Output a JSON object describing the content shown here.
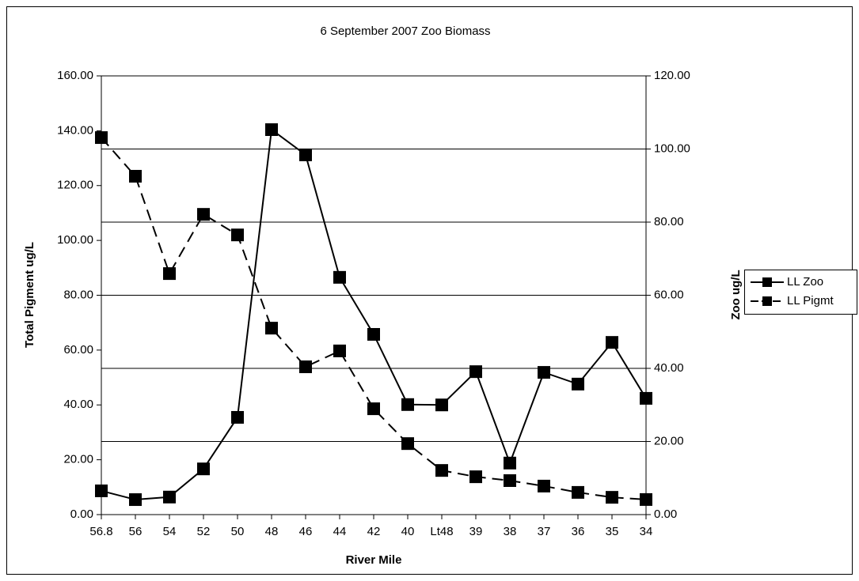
{
  "chart_data": {
    "type": "line",
    "title": "6 September 2007 Zoo Biomass",
    "x_label": "River Mile",
    "y_label": "Total Pigment ug/L",
    "y2_label": "Zoo ug/L",
    "categories": [
      "56.8",
      "56",
      "54",
      "52",
      "50",
      "48",
      "46",
      "44",
      "42",
      "40",
      "Lt48",
      "39",
      "38",
      "37",
      "36",
      "35",
      "34"
    ],
    "series": [
      {
        "name": "LL Zoo",
        "color": "#000000",
        "line_style": "solid",
        "axis": "y2",
        "values": [
          6.5,
          4.1,
          4.8,
          12.5,
          26.6,
          105.3,
          98.4,
          64.9,
          49.3,
          30.1,
          30.0,
          39.1,
          14.1,
          38.9,
          35.7,
          47.1,
          31.8
        ]
      },
      {
        "name": "LL Pigmt",
        "color": "#000000",
        "line_style": "dashed",
        "axis": "y",
        "values": [
          137.5,
          123.4,
          87.9,
          109.5,
          102.0,
          68.0,
          53.9,
          59.7,
          38.6,
          25.9,
          16.1,
          13.8,
          12.4,
          10.4,
          8.1,
          6.3,
          5.5
        ]
      }
    ],
    "ylim": [
      0,
      160
    ],
    "yticks": [
      {
        "value": 0,
        "label": "0.00"
      },
      {
        "value": 20,
        "label": "20.00"
      },
      {
        "value": 40,
        "label": "40.00"
      },
      {
        "value": 60,
        "label": "60.00"
      },
      {
        "value": 80,
        "label": "80.00"
      },
      {
        "value": 100,
        "label": "100.00"
      },
      {
        "value": 120,
        "label": "120.00"
      },
      {
        "value": 140,
        "label": "140.00"
      },
      {
        "value": 160,
        "label": "160.00"
      }
    ],
    "y2lim": [
      0,
      120
    ],
    "y2ticks": [
      {
        "value": 0,
        "label": "0.00"
      },
      {
        "value": 20,
        "label": "20.00"
      },
      {
        "value": 40,
        "label": "40.00"
      },
      {
        "value": 60,
        "label": "60.00"
      },
      {
        "value": 80,
        "label": "80.00"
      },
      {
        "value": 100,
        "label": "100.00"
      },
      {
        "value": 120,
        "label": "120.00"
      }
    ],
    "grid": "y2",
    "legend": "right"
  }
}
